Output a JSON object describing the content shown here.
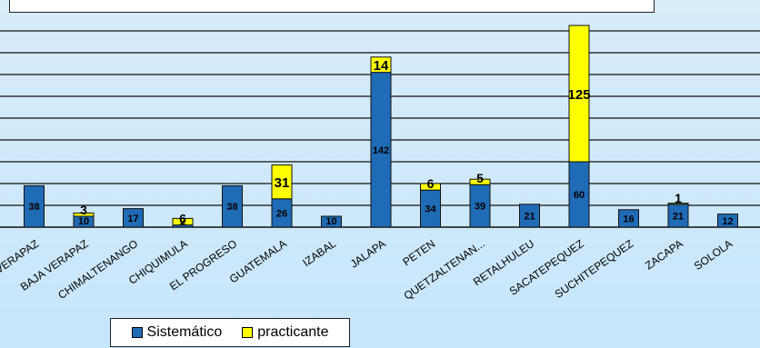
{
  "chart_data": {
    "type": "bar",
    "stacked": true,
    "categories": [
      "ALTA VERAPAZ",
      "BAJA VERAPAZ",
      "CHIMALTENANGO",
      "CHIQUIMULA",
      "EL PROGRESO",
      "GUATEMALA",
      "IZABAL",
      "JALAPA",
      "PETEN",
      "QUETZALTENAN...",
      "RETALHULEU",
      "SACATEPEQUEZ",
      "SUCHITEPEQUEZ",
      "ZACAPA",
      "SOLOLA"
    ],
    "series": [
      {
        "name": "Sistemático",
        "color": "#1f6bb5",
        "values": [
          38,
          10,
          17,
          2,
          38,
          26,
          10,
          142,
          34,
          39,
          21,
          60,
          16,
          21,
          12
        ]
      },
      {
        "name": "practicante",
        "color": "#ffff00",
        "values": [
          0,
          3,
          0,
          6,
          0,
          31,
          0,
          14,
          6,
          5,
          0,
          125,
          0,
          1,
          0
        ]
      }
    ],
    "value_labels": {
      "Sistemático": [
        "38",
        "10",
        "17",
        "2",
        "38",
        "26",
        "10",
        "142",
        "34",
        "39",
        "21",
        "60",
        "16",
        "21",
        "12"
      ],
      "practicante": [
        "",
        "3",
        "",
        "6",
        "",
        "31",
        "",
        "14",
        "6",
        "5",
        "",
        "125",
        "",
        "1",
        ""
      ]
    },
    "ylim": [
      0,
      185
    ],
    "grid": true,
    "legend_position": "bottom"
  }
}
